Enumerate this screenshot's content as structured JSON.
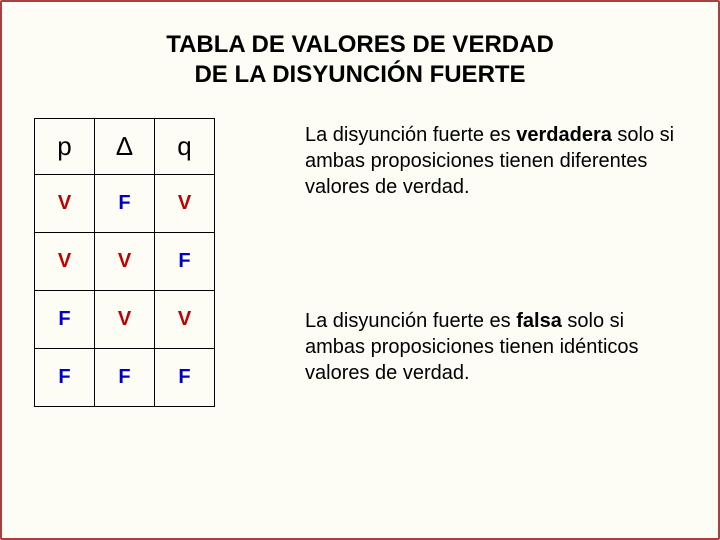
{
  "title": {
    "line1": "TABLA DE VALORES DE VERDAD",
    "line2": "DE LA DISYUNCIÓN FUERTE"
  },
  "table": {
    "headers": {
      "p": "p",
      "op": "∆",
      "q": "q"
    },
    "rows": [
      {
        "p": "V",
        "op": "F",
        "q": "V",
        "p_cls": "V",
        "op_cls": "F",
        "q_cls": "V"
      },
      {
        "p": "V",
        "op": "V",
        "q": "F",
        "p_cls": "V",
        "op_cls": "V",
        "q_cls": "F"
      },
      {
        "p": "F",
        "op": "V",
        "q": "V",
        "p_cls": "F",
        "op_cls": "V",
        "q_cls": "V"
      },
      {
        "p": "F",
        "op": "F",
        "q": "F",
        "p_cls": "F",
        "op_cls": "F",
        "q_cls": "F"
      }
    ]
  },
  "para1": {
    "prefix": "La disyunción fuerte es ",
    "bold": "verdadera",
    "rest": " solo si ambas proposiciones tienen diferentes valores de verdad."
  },
  "para2": {
    "prefix": "La disyunción fuerte es ",
    "bold": "falsa",
    "rest": " solo si ambas proposiciones tienen idénticos valores de verdad."
  },
  "colors": {
    "V": "#c00000",
    "F": "#0000cc",
    "border": "#a84040",
    "background": "#fdfdf6"
  },
  "fonts": {
    "title_size": 24,
    "header_cell_size": 26,
    "body_cell_size": 20,
    "paragraph_size": 20
  }
}
